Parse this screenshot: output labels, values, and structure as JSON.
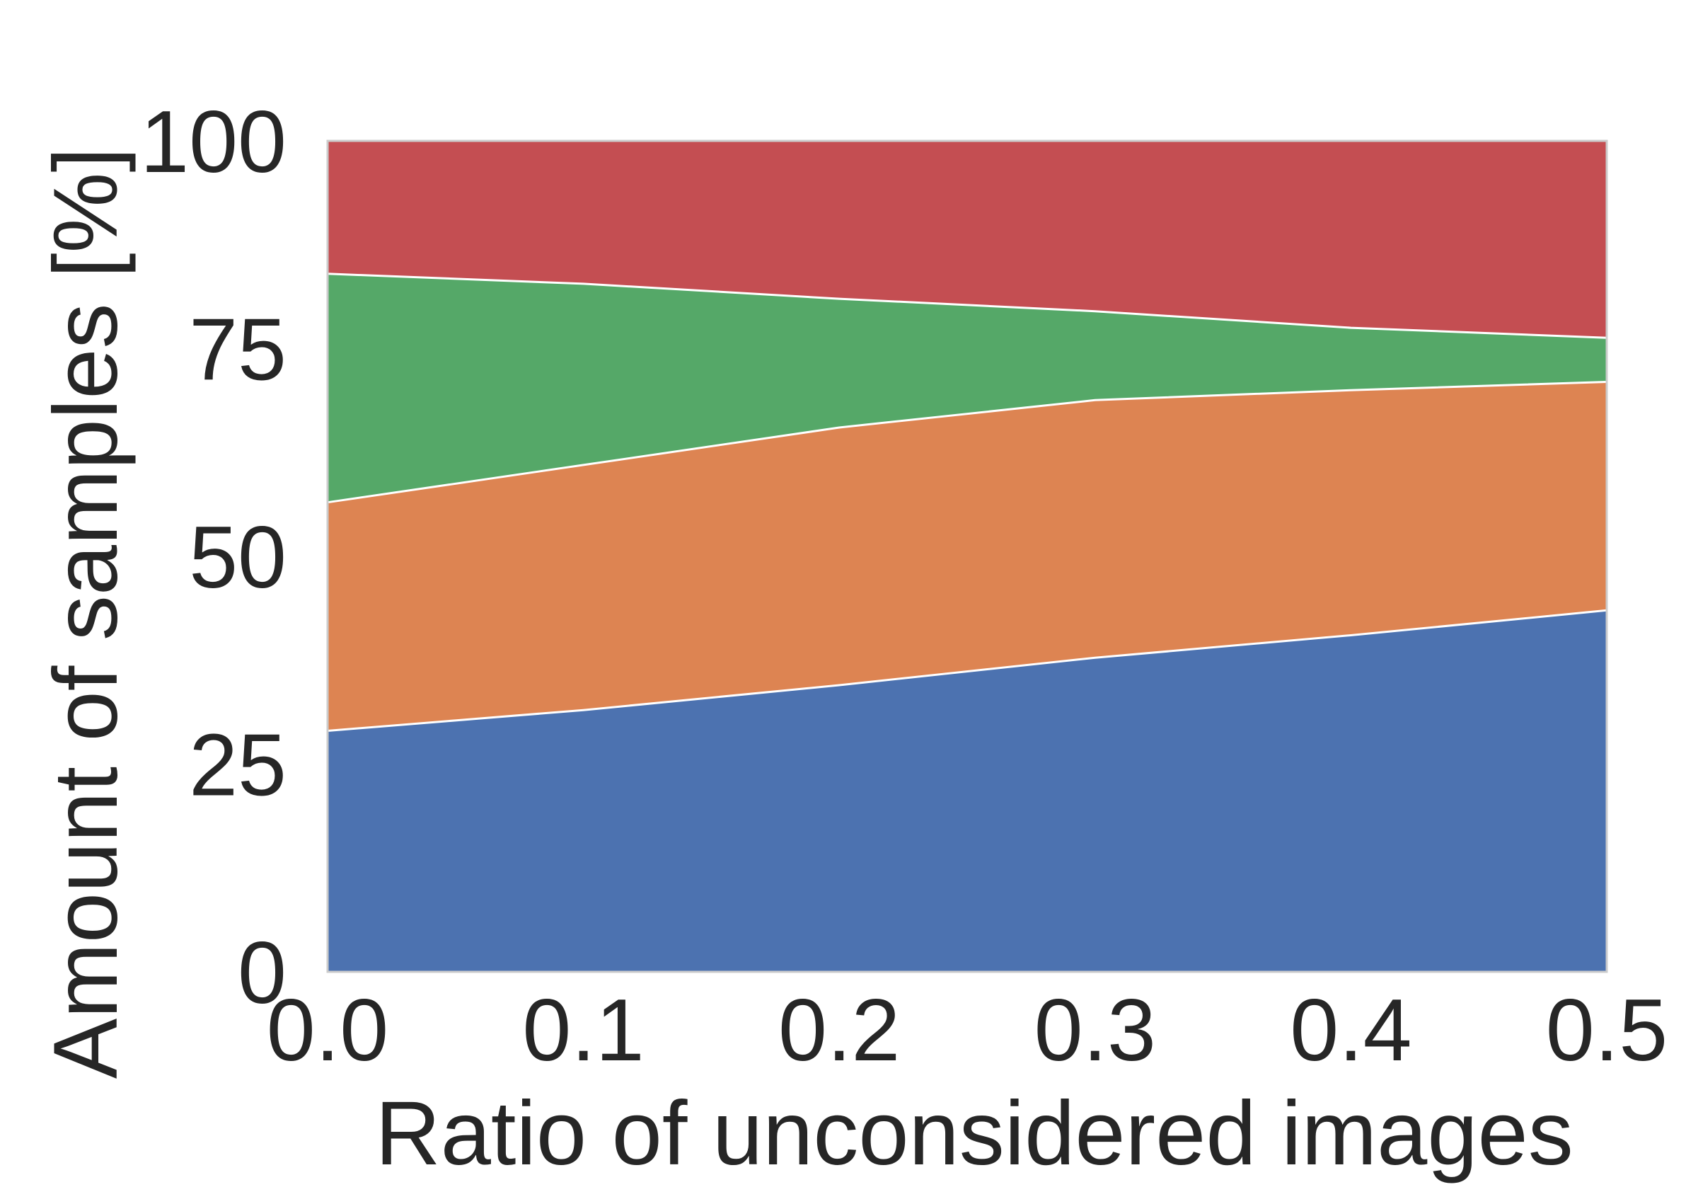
{
  "chart_data": {
    "type": "area",
    "stacked": true,
    "title": "",
    "xlabel": "Ratio of unconsidered images",
    "ylabel": "Amount of samples [%]",
    "x": [
      0.0,
      0.1,
      0.2,
      0.3,
      0.4,
      0.5
    ],
    "xticks": [
      "0.0",
      "0.1",
      "0.2",
      "0.3",
      "0.4",
      "0.5"
    ],
    "yticks": [
      "0",
      "25",
      "50",
      "75",
      "100"
    ],
    "xlim": [
      0.0,
      0.5
    ],
    "ylim": [
      0,
      100
    ],
    "grid": false,
    "series": [
      {
        "values": [
          29,
          31.5,
          34.5,
          37.8,
          40.5,
          43.5
        ],
        "color": "#4c72b0"
      },
      {
        "values": [
          27.5,
          29.5,
          31,
          31,
          29.5,
          27.5
        ],
        "color": "#dd8452"
      },
      {
        "values": [
          27.5,
          21.8,
          15.5,
          10.7,
          7.5,
          5.3
        ],
        "color": "#55a868"
      },
      {
        "values": [
          16,
          17.2,
          19,
          20.5,
          22.5,
          23.7
        ],
        "color": "#c44e52"
      }
    ]
  }
}
